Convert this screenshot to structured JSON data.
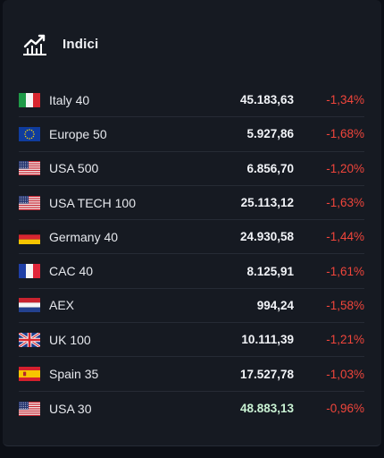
{
  "header": {
    "title": "Indici",
    "icon": "line-chart-icon"
  },
  "colors": {
    "negative": "#f0453b",
    "text": "#e6e8ed",
    "panel": "#161a22"
  },
  "indices": [
    {
      "flag": "italy",
      "name": "Italy 40",
      "value": "45.183,63",
      "change": "-1,34%"
    },
    {
      "flag": "eu",
      "name": "Europe 50",
      "value": "5.927,86",
      "change": "-1,68%"
    },
    {
      "flag": "us",
      "name": "USA 500",
      "value": "6.856,70",
      "change": "-1,20%"
    },
    {
      "flag": "us",
      "name": "USA TECH 100",
      "value": "25.113,12",
      "change": "-1,63%"
    },
    {
      "flag": "germany",
      "name": "Germany 40",
      "value": "24.930,58",
      "change": "-1,44%"
    },
    {
      "flag": "france",
      "name": "CAC 40",
      "value": "8.125,91",
      "change": "-1,61%"
    },
    {
      "flag": "netherlands",
      "name": "AEX",
      "value": "994,24",
      "change": "-1,58%"
    },
    {
      "flag": "uk",
      "name": "UK 100",
      "value": "10.111,39",
      "change": "-1,21%"
    },
    {
      "flag": "spain",
      "name": "Spain 35",
      "value": "17.527,78",
      "change": "-1,03%"
    },
    {
      "flag": "us",
      "name": "USA 30",
      "value": "48.883,13",
      "change": "-0,96%",
      "value_tick": "up"
    }
  ]
}
